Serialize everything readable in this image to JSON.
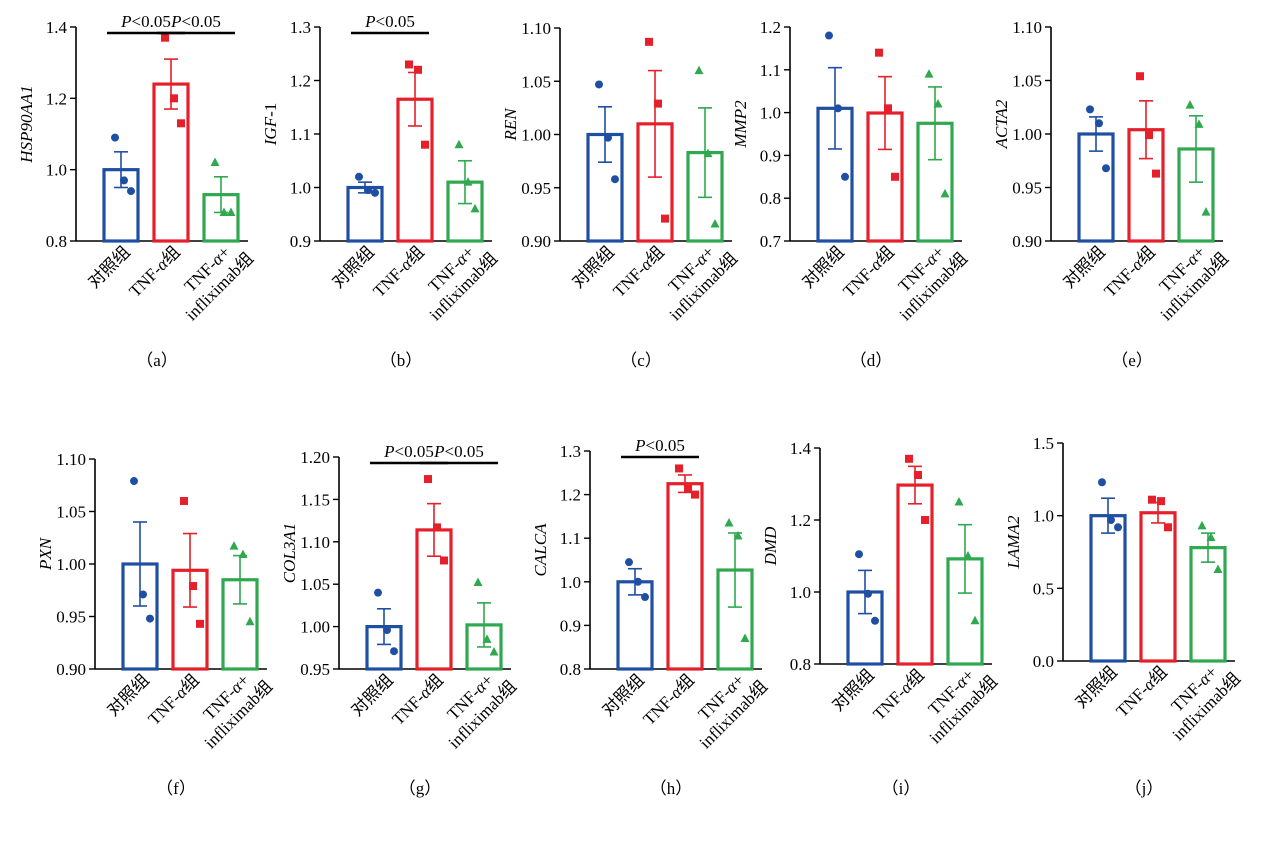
{
  "colors": {
    "control": "#1f4fa3",
    "tnf": "#e5202a",
    "infliximab": "#2fa84f",
    "axis": "#000000"
  },
  "chart_data": [
    {
      "type": "bar",
      "panel_label": "（a）",
      "ylabel": "HSP90AA1",
      "categories": [
        "对照组",
        "TNF-α组",
        "TNF-α+ infliximab组"
      ],
      "category_lines": [
        [
          "对照组"
        ],
        [
          "TNF-α组"
        ],
        [
          "TNF-α+",
          "infliximab组"
        ]
      ],
      "ylim": [
        0.8,
        1.4
      ],
      "yticks": [
        "0.8",
        "1.0",
        "1.2",
        "1.4"
      ],
      "values": [
        1.0,
        1.24,
        0.93
      ],
      "sem": [
        0.05,
        0.07,
        0.05
      ],
      "points": [
        [
          1.09,
          0.97,
          0.94
        ],
        [
          1.37,
          1.2,
          1.13
        ],
        [
          1.02,
          0.88,
          0.88
        ]
      ],
      "significance": [
        {
          "from": 0,
          "to": 1,
          "label": "P<0.05"
        },
        {
          "from": 1,
          "to": 2,
          "label": "P<0.05"
        }
      ]
    },
    {
      "type": "bar",
      "panel_label": "（b）",
      "ylabel": "IGF-1",
      "categories": [
        "对照组",
        "TNF-α组",
        "TNF-α+ infliximab组"
      ],
      "category_lines": [
        [
          "对照组"
        ],
        [
          "TNF-α组"
        ],
        [
          "TNF-α+",
          "infliximab组"
        ]
      ],
      "ylim": [
        0.9,
        1.3
      ],
      "yticks": [
        "0.9",
        "1.0",
        "1.1",
        "1.2",
        "1.3"
      ],
      "values": [
        1.0,
        1.165,
        1.01
      ],
      "sem": [
        0.01,
        0.05,
        0.04
      ],
      "points": [
        [
          1.02,
          0.995,
          0.99
        ],
        [
          1.23,
          1.22,
          1.08
        ],
        [
          1.08,
          1.01,
          0.96
        ]
      ],
      "significance": [
        {
          "from": 0,
          "to": 1,
          "label": "P<0.05"
        }
      ]
    },
    {
      "type": "bar",
      "panel_label": "（c）",
      "ylabel": "REN",
      "categories": [
        "对照组",
        "TNF-α组",
        "TNF-α+ infliximab组"
      ],
      "category_lines": [
        [
          "对照组"
        ],
        [
          "TNF-α组"
        ],
        [
          "TNF-α+",
          "infliximab组"
        ]
      ],
      "ylim": [
        0.9,
        1.1
      ],
      "yticks": [
        "0.90",
        "0.95",
        "1.00",
        "1.05",
        "1.10"
      ],
      "values": [
        1.0,
        1.01,
        0.983
      ],
      "sem": [
        0.026,
        0.05,
        0.042
      ],
      "points": [
        [
          1.047,
          0.997,
          0.958
        ],
        [
          1.087,
          1.029,
          0.921
        ],
        [
          1.06,
          0.982,
          0.916
        ]
      ],
      "significance": []
    },
    {
      "type": "bar",
      "panel_label": "（d）",
      "ylabel": "MMP2",
      "categories": [
        "对照组",
        "TNF-α组",
        "TNF-α+ infliximab组"
      ],
      "category_lines": [
        [
          "对照组"
        ],
        [
          "TNF-α组"
        ],
        [
          "TNF-α+",
          "infliximab组"
        ]
      ],
      "ylim": [
        0.7,
        1.2
      ],
      "yticks": [
        "0.7",
        "0.8",
        "0.9",
        "1.0",
        "1.1",
        "1.2"
      ],
      "values": [
        1.01,
        0.999,
        0.975
      ],
      "sem": [
        0.095,
        0.085,
        0.085
      ],
      "points": [
        [
          1.18,
          1.01,
          0.85
        ],
        [
          1.14,
          1.01,
          0.85
        ],
        [
          1.09,
          1.02,
          0.81
        ]
      ],
      "significance": []
    },
    {
      "type": "bar",
      "panel_label": "（e）",
      "ylabel": "ACTA2",
      "categories": [
        "对照组",
        "TNF-α组",
        "TNF-α+ infliximab组"
      ],
      "category_lines": [
        [
          "对照组"
        ],
        [
          "TNF-α组"
        ],
        [
          "TNF-α+",
          "infliximab组"
        ]
      ],
      "ylim": [
        0.9,
        1.1
      ],
      "yticks": [
        "0.90",
        "0.95",
        "1.00",
        "1.05",
        "1.10"
      ],
      "values": [
        1.0,
        1.004,
        0.986
      ],
      "sem": [
        0.016,
        0.027,
        0.031
      ],
      "points": [
        [
          1.023,
          1.01,
          0.968
        ],
        [
          1.054,
          0.999,
          0.963
        ],
        [
          1.027,
          1.009,
          0.927
        ]
      ],
      "significance": []
    },
    {
      "type": "bar",
      "panel_label": "（f）",
      "ylabel": "PXN",
      "categories": [
        "对照组",
        "TNF-α组",
        "TNF-α+ infliximab组"
      ],
      "category_lines": [
        [
          "对照组"
        ],
        [
          "TNF-α组"
        ],
        [
          "TNF-α+",
          "infliximab组"
        ]
      ],
      "ylim": [
        0.9,
        1.1
      ],
      "yticks": [
        "0.90",
        "0.95",
        "1.00",
        "1.05",
        "1.10"
      ],
      "values": [
        1.0,
        0.994,
        0.985
      ],
      "sem": [
        0.04,
        0.035,
        0.023
      ],
      "points": [
        [
          1.079,
          0.971,
          0.948
        ],
        [
          1.06,
          0.979,
          0.943
        ],
        [
          1.017,
          1.009,
          0.945
        ]
      ],
      "significance": []
    },
    {
      "type": "bar",
      "panel_label": "（g）",
      "ylabel": "COL3A1",
      "categories": [
        "对照组",
        "TNF-α组",
        "TNF-α+ infliximab组"
      ],
      "category_lines": [
        [
          "对照组"
        ],
        [
          "TNF-α组"
        ],
        [
          "TNF-α+",
          "infliximab组"
        ]
      ],
      "ylim": [
        0.95,
        1.2
      ],
      "yticks": [
        "0.95",
        "1.00",
        "1.05",
        "1.10",
        "1.15",
        "1.20"
      ],
      "values": [
        1.0,
        1.114,
        1.002
      ],
      "sem": [
        0.021,
        0.031,
        0.026
      ],
      "points": [
        [
          1.04,
          0.996,
          0.971
        ],
        [
          1.174,
          1.117,
          1.078
        ],
        [
          1.052,
          0.985,
          0.97
        ]
      ],
      "significance": [
        {
          "from": 0,
          "to": 1,
          "label": "P<0.05"
        },
        {
          "from": 1,
          "to": 2,
          "label": "P<0.05"
        }
      ]
    },
    {
      "type": "bar",
      "panel_label": "（h）",
      "ylabel": "CALCA",
      "categories": [
        "对照组",
        "TNF-α组",
        "TNF-α+ infliximab组"
      ],
      "category_lines": [
        [
          "对照组"
        ],
        [
          "TNF-α组"
        ],
        [
          "TNF-α+",
          "infliximab组"
        ]
      ],
      "ylim": [
        0.8,
        1.3
      ],
      "yticks": [
        "0.8",
        "0.9",
        "1.0",
        "1.1",
        "1.2",
        "1.3"
      ],
      "values": [
        1.0,
        1.225,
        1.027
      ],
      "sem": [
        0.03,
        0.02,
        0.085
      ],
      "points": [
        [
          1.045,
          1.0,
          0.965
        ],
        [
          1.26,
          1.215,
          1.2
        ],
        [
          1.135,
          1.105,
          0.87
        ]
      ],
      "significance": [
        {
          "from": 0,
          "to": 1,
          "label": "P<0.05"
        }
      ]
    },
    {
      "type": "bar",
      "panel_label": "（i）",
      "ylabel": "DMD",
      "categories": [
        "对照组",
        "TNF-α组",
        "TNF-α+ infliximab组"
      ],
      "category_lines": [
        [
          "对照组"
        ],
        [
          "TNF-α组"
        ],
        [
          "TNF-α+",
          "infliximab组"
        ]
      ],
      "ylim": [
        0.8,
        1.4
      ],
      "yticks": [
        "0.8",
        "1.0",
        "1.2",
        "1.4"
      ],
      "values": [
        1.0,
        1.297,
        1.092
      ],
      "sem": [
        0.06,
        0.052,
        0.095
      ],
      "points": [
        [
          1.105,
          0.995,
          0.92
        ],
        [
          1.37,
          1.325,
          1.2
        ],
        [
          1.25,
          1.1,
          0.92
        ]
      ],
      "significance": []
    },
    {
      "type": "bar",
      "panel_label": "（j）",
      "ylabel": "LAMA2",
      "categories": [
        "对照组",
        "TNF-α组",
        "TNF-α+ infliximab组"
      ],
      "category_lines": [
        [
          "对照组"
        ],
        [
          "TNF-α组"
        ],
        [
          "TNF-α+",
          "infliximab组"
        ]
      ],
      "ylim": [
        0.0,
        1.5
      ],
      "yticks": [
        "0.0",
        "0.5",
        "1.0",
        "1.5"
      ],
      "values": [
        1.0,
        1.02,
        0.78
      ],
      "sem": [
        0.12,
        0.07,
        0.1
      ],
      "points": [
        [
          1.23,
          0.97,
          0.92
        ],
        [
          1.11,
          1.1,
          0.92
        ],
        [
          0.93,
          0.85,
          0.63
        ]
      ],
      "significance": []
    }
  ]
}
